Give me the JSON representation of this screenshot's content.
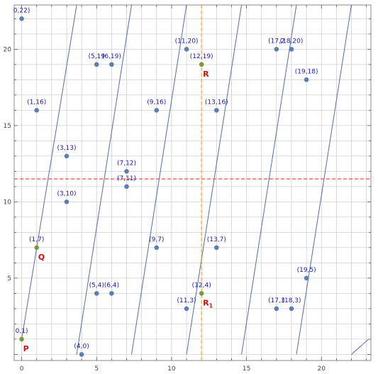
{
  "chart_data": {
    "type": "scatter",
    "title": "",
    "xlabel": "",
    "ylabel": "",
    "xlim": [
      -0.5,
      23.3
    ],
    "ylim": [
      -0.4,
      22.9
    ],
    "grid": true,
    "x_ticks": [
      0,
      5,
      10,
      15,
      20
    ],
    "y_ticks": [
      5,
      10,
      15,
      20
    ],
    "x_tick_labels": [
      "0",
      "5",
      "10",
      "15",
      "20"
    ],
    "y_tick_labels": [
      "5",
      "10",
      "15",
      "20"
    ],
    "point_color": "#5b7fb0",
    "highlight_color": "#7a9b3a",
    "line_color": "#4f6fa8",
    "h_line_color": "#e05050",
    "v_line_color": "#f0a040",
    "point_label_color": "#1a1aa6",
    "special_label_color": "#cc1111",
    "points": [
      {
        "x": 0,
        "y": 22,
        "label": "0,22)",
        "highlight": false
      },
      {
        "x": 5,
        "y": 19,
        "label": "(5,19",
        "highlight": false
      },
      {
        "x": 6,
        "y": 19,
        "label": "(6,19)",
        "highlight": false
      },
      {
        "x": 11,
        "y": 20,
        "label": "(11,20)",
        "highlight": false
      },
      {
        "x": 12,
        "y": 19,
        "label": "(12,19)",
        "highlight": true
      },
      {
        "x": 17,
        "y": 20,
        "label": "(17,2",
        "highlight": false
      },
      {
        "x": 18,
        "y": 20,
        "label": "(18,20)",
        "highlight": false
      },
      {
        "x": 19,
        "y": 18,
        "label": "(19,18)",
        "highlight": false
      },
      {
        "x": 1,
        "y": 16,
        "label": "(1,16)",
        "highlight": false
      },
      {
        "x": 9,
        "y": 16,
        "label": "(9,16)",
        "highlight": false
      },
      {
        "x": 13,
        "y": 16,
        "label": "(13,16)",
        "highlight": false
      },
      {
        "x": 3,
        "y": 13,
        "label": "(3,13)",
        "highlight": false
      },
      {
        "x": 7,
        "y": 12,
        "label": "(7,12)",
        "highlight": false
      },
      {
        "x": 7,
        "y": 11,
        "label": "(7,11)",
        "highlight": false
      },
      {
        "x": 3,
        "y": 10,
        "label": "(3,10)",
        "highlight": false
      },
      {
        "x": 1,
        "y": 7,
        "label": "(1,7)",
        "highlight": true
      },
      {
        "x": 9,
        "y": 7,
        "label": "(9,7)",
        "highlight": false
      },
      {
        "x": 13,
        "y": 7,
        "label": "(13,7)",
        "highlight": false
      },
      {
        "x": 19,
        "y": 5,
        "label": "(19,5)",
        "highlight": false
      },
      {
        "x": 5,
        "y": 4,
        "label": "(5,4)",
        "highlight": false
      },
      {
        "x": 6,
        "y": 4,
        "label": "(6,4)",
        "highlight": false
      },
      {
        "x": 12,
        "y": 4,
        "label": "(12,4)",
        "highlight": true
      },
      {
        "x": 11,
        "y": 3,
        "label": "(11,3)",
        "highlight": false
      },
      {
        "x": 17,
        "y": 3,
        "label": "(17,3",
        "highlight": false
      },
      {
        "x": 18,
        "y": 3,
        "label": "(18,3)",
        "highlight": false
      },
      {
        "x": 0,
        "y": 1,
        "label": "0,1)",
        "highlight": true
      },
      {
        "x": 4,
        "y": 0,
        "label": "(4,0)",
        "highlight": false
      }
    ],
    "special_labels": [
      {
        "text": "P",
        "x": 0,
        "y": 1
      },
      {
        "text": "Q",
        "x": 1,
        "y": 7
      },
      {
        "text": "R",
        "x": 12,
        "y": 19
      },
      {
        "text": "R",
        "subscript": "1",
        "x": 12,
        "y": 4
      }
    ],
    "sloped_lines": [
      {
        "x1": 0,
        "y1": 1,
        "x2": 3.67,
        "y2": 23
      },
      {
        "x1": 3.67,
        "y1": 0,
        "x2": 7.33,
        "y2": 23
      },
      {
        "x1": 7.33,
        "y1": 0,
        "x2": 11,
        "y2": 23
      },
      {
        "x1": 11,
        "y1": 0,
        "x2": 14.67,
        "y2": 23
      },
      {
        "x1": 14.67,
        "y1": 0,
        "x2": 18.33,
        "y2": 23
      },
      {
        "x1": 18.33,
        "y1": 0,
        "x2": 22,
        "y2": 23
      },
      {
        "x1": 22,
        "y1": 0,
        "x2": 23.15,
        "y2": 1
      }
    ],
    "h_line": {
      "y": 11.5
    },
    "v_line": {
      "x": 12
    }
  }
}
